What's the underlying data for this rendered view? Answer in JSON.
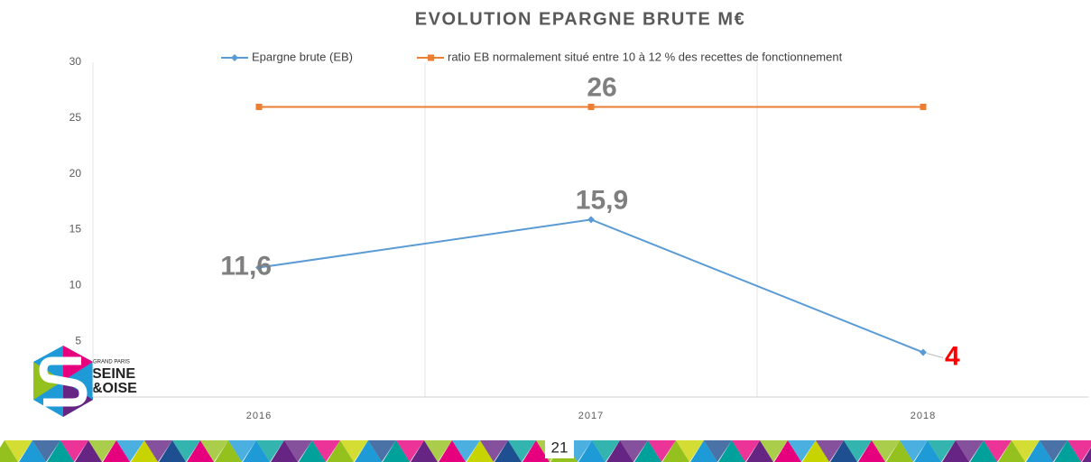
{
  "chart_data": {
    "type": "line",
    "title": "EVOLUTION EPARGNE BRUTE M€",
    "categories": [
      "2016",
      "2017",
      "2018"
    ],
    "series": [
      {
        "name": "Epargne brute (EB)",
        "color": "#5b9bd5",
        "marker": "diamond",
        "values": [
          11.6,
          15.9,
          4
        ],
        "value_labels": [
          "11,6",
          "15,9",
          "4"
        ],
        "label_colors": [
          "#7f7f7f",
          "#7f7f7f",
          "#ff0000"
        ]
      },
      {
        "name": "ratio EB normalement situé entre 10 à 12 % des recettes de fonctionnement",
        "color": "#ed7d31",
        "marker": "square",
        "values": [
          26,
          26,
          26
        ],
        "value_labels": [
          null,
          "26",
          null
        ],
        "label_colors": [
          "#7f7f7f",
          "#7f7f7f",
          "#7f7f7f"
        ]
      }
    ],
    "ylim": [
      0,
      30
    ],
    "yticks": [
      5,
      10,
      15,
      20,
      25,
      30
    ],
    "grid": "vertical",
    "legend": "top"
  },
  "logo": {
    "line1": "GRAND PARIS",
    "line2": "SEINE",
    "line3": "&OISE"
  },
  "page_number": "21"
}
